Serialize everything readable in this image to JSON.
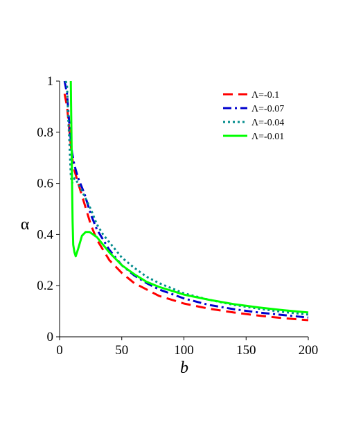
{
  "chart_data": {
    "type": "line",
    "xlabel": "b",
    "ylabel": "α",
    "xlim": [
      0,
      200
    ],
    "ylim": [
      0,
      1
    ],
    "x_ticks": [
      "0",
      "50",
      "100",
      "150",
      "200"
    ],
    "y_ticks": [
      "0",
      "0.2",
      "0.4",
      "0.6",
      "0.8",
      "1"
    ],
    "grid": false,
    "legend_position": "top-right",
    "series": [
      {
        "name": "Λ=-0.1",
        "color": "#ff0000",
        "style": "dash",
        "x": [
          4,
          6,
          8,
          10,
          12,
          15,
          20,
          25,
          30,
          40,
          50,
          60,
          70,
          80,
          100,
          120,
          140,
          160,
          180,
          200
        ],
        "y": [
          0.95,
          0.9,
          0.8,
          0.7,
          0.65,
          0.6,
          0.52,
          0.44,
          0.38,
          0.3,
          0.25,
          0.21,
          0.185,
          0.16,
          0.13,
          0.11,
          0.095,
          0.083,
          0.073,
          0.065
        ]
      },
      {
        "name": "Λ=-0.07",
        "color": "#0000cd",
        "style": "dashdot",
        "x": [
          4,
          6,
          8,
          10,
          12,
          15,
          20,
          25,
          30,
          40,
          50,
          60,
          70,
          80,
          100,
          120,
          140,
          160,
          180,
          200
        ],
        "y": [
          1.0,
          0.95,
          0.82,
          0.72,
          0.67,
          0.62,
          0.56,
          0.48,
          0.42,
          0.34,
          0.28,
          0.24,
          0.21,
          0.185,
          0.15,
          0.125,
          0.108,
          0.095,
          0.085,
          0.075
        ]
      },
      {
        "name": "Λ=-0.04",
        "color": "#008b8b",
        "style": "dot",
        "x": [
          5,
          6,
          7,
          8,
          9,
          10,
          12,
          15,
          20,
          25,
          30,
          35,
          40,
          50,
          60,
          70,
          80,
          100,
          120,
          140,
          160,
          180,
          200
        ],
        "y": [
          1.0,
          0.98,
          0.85,
          0.75,
          0.63,
          0.6,
          0.62,
          0.6,
          0.55,
          0.5,
          0.44,
          0.4,
          0.37,
          0.31,
          0.27,
          0.235,
          0.21,
          0.17,
          0.145,
          0.125,
          0.11,
          0.097,
          0.087
        ]
      },
      {
        "name": "Λ=-0.01",
        "color": "#00ff00",
        "style": "solid",
        "x": [
          9,
          9.5,
          10,
          10.5,
          11,
          12,
          13,
          15,
          18,
          21,
          24,
          27,
          30,
          35,
          40,
          50,
          60,
          70,
          80,
          100,
          120,
          140,
          160,
          180,
          200
        ],
        "y": [
          1.0,
          0.8,
          0.6,
          0.45,
          0.36,
          0.33,
          0.315,
          0.345,
          0.395,
          0.41,
          0.41,
          0.4,
          0.39,
          0.36,
          0.33,
          0.28,
          0.245,
          0.215,
          0.195,
          0.165,
          0.145,
          0.128,
          0.115,
          0.104,
          0.095
        ]
      }
    ]
  }
}
